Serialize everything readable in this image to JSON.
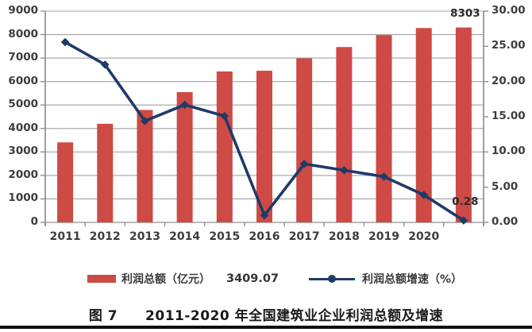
{
  "figure": {
    "title": "图 7　　2011-2020 年全国建筑业企业利润总额及增速"
  },
  "legend": {
    "bar_label": "利润总额（亿元）",
    "bar_value_note": "3409.07",
    "line_label": "利润总额增速（%）"
  },
  "colors": {
    "bar": "#CE4A45",
    "line": "#1F3A68",
    "grid": "#A3A3A3",
    "axis": "#8F8F8F",
    "text": "#3D3D3D"
  },
  "chart_data": {
    "type": "bar+line combo",
    "title": "图 7　2011-2020 年全国建筑业企业利润总额及增速",
    "xlabel": "",
    "categories": [
      "2011",
      "2012",
      "2013",
      "2014",
      "2015",
      "2016",
      "2017",
      "2018",
      "2019",
      "2020",
      ""
    ],
    "series": [
      {
        "name": "利润总额（亿元）",
        "type": "bar",
        "axis": "left",
        "values": [
          3409.07,
          4200,
          4790,
          5550,
          6430,
          6460,
          6990,
          7470,
          7980,
          8280,
          8303
        ]
      },
      {
        "name": "利润总额增速（%）",
        "type": "line",
        "axis": "right",
        "values": [
          25.6,
          22.4,
          14.4,
          16.7,
          15.1,
          1.0,
          8.3,
          7.4,
          6.5,
          3.9,
          0.28
        ]
      }
    ],
    "left_axis": {
      "min": 0,
      "max": 9000,
      "step": 1000,
      "ticks": [
        "0",
        "1000",
        "2000",
        "3000",
        "4000",
        "5000",
        "6000",
        "7000",
        "8000",
        "9000"
      ]
    },
    "right_axis": {
      "min": 0,
      "max": 30,
      "step": 5,
      "ticks": [
        "0.00",
        "5.00",
        "10.00",
        "15.00",
        "20.00",
        "25.00",
        "30.00"
      ]
    },
    "grid": "horizontal",
    "legend_position": "bottom",
    "annotations": [
      {
        "text": "8303",
        "series": 0,
        "index": 10
      },
      {
        "text": "0.28",
        "series": 1,
        "index": 10
      }
    ]
  }
}
